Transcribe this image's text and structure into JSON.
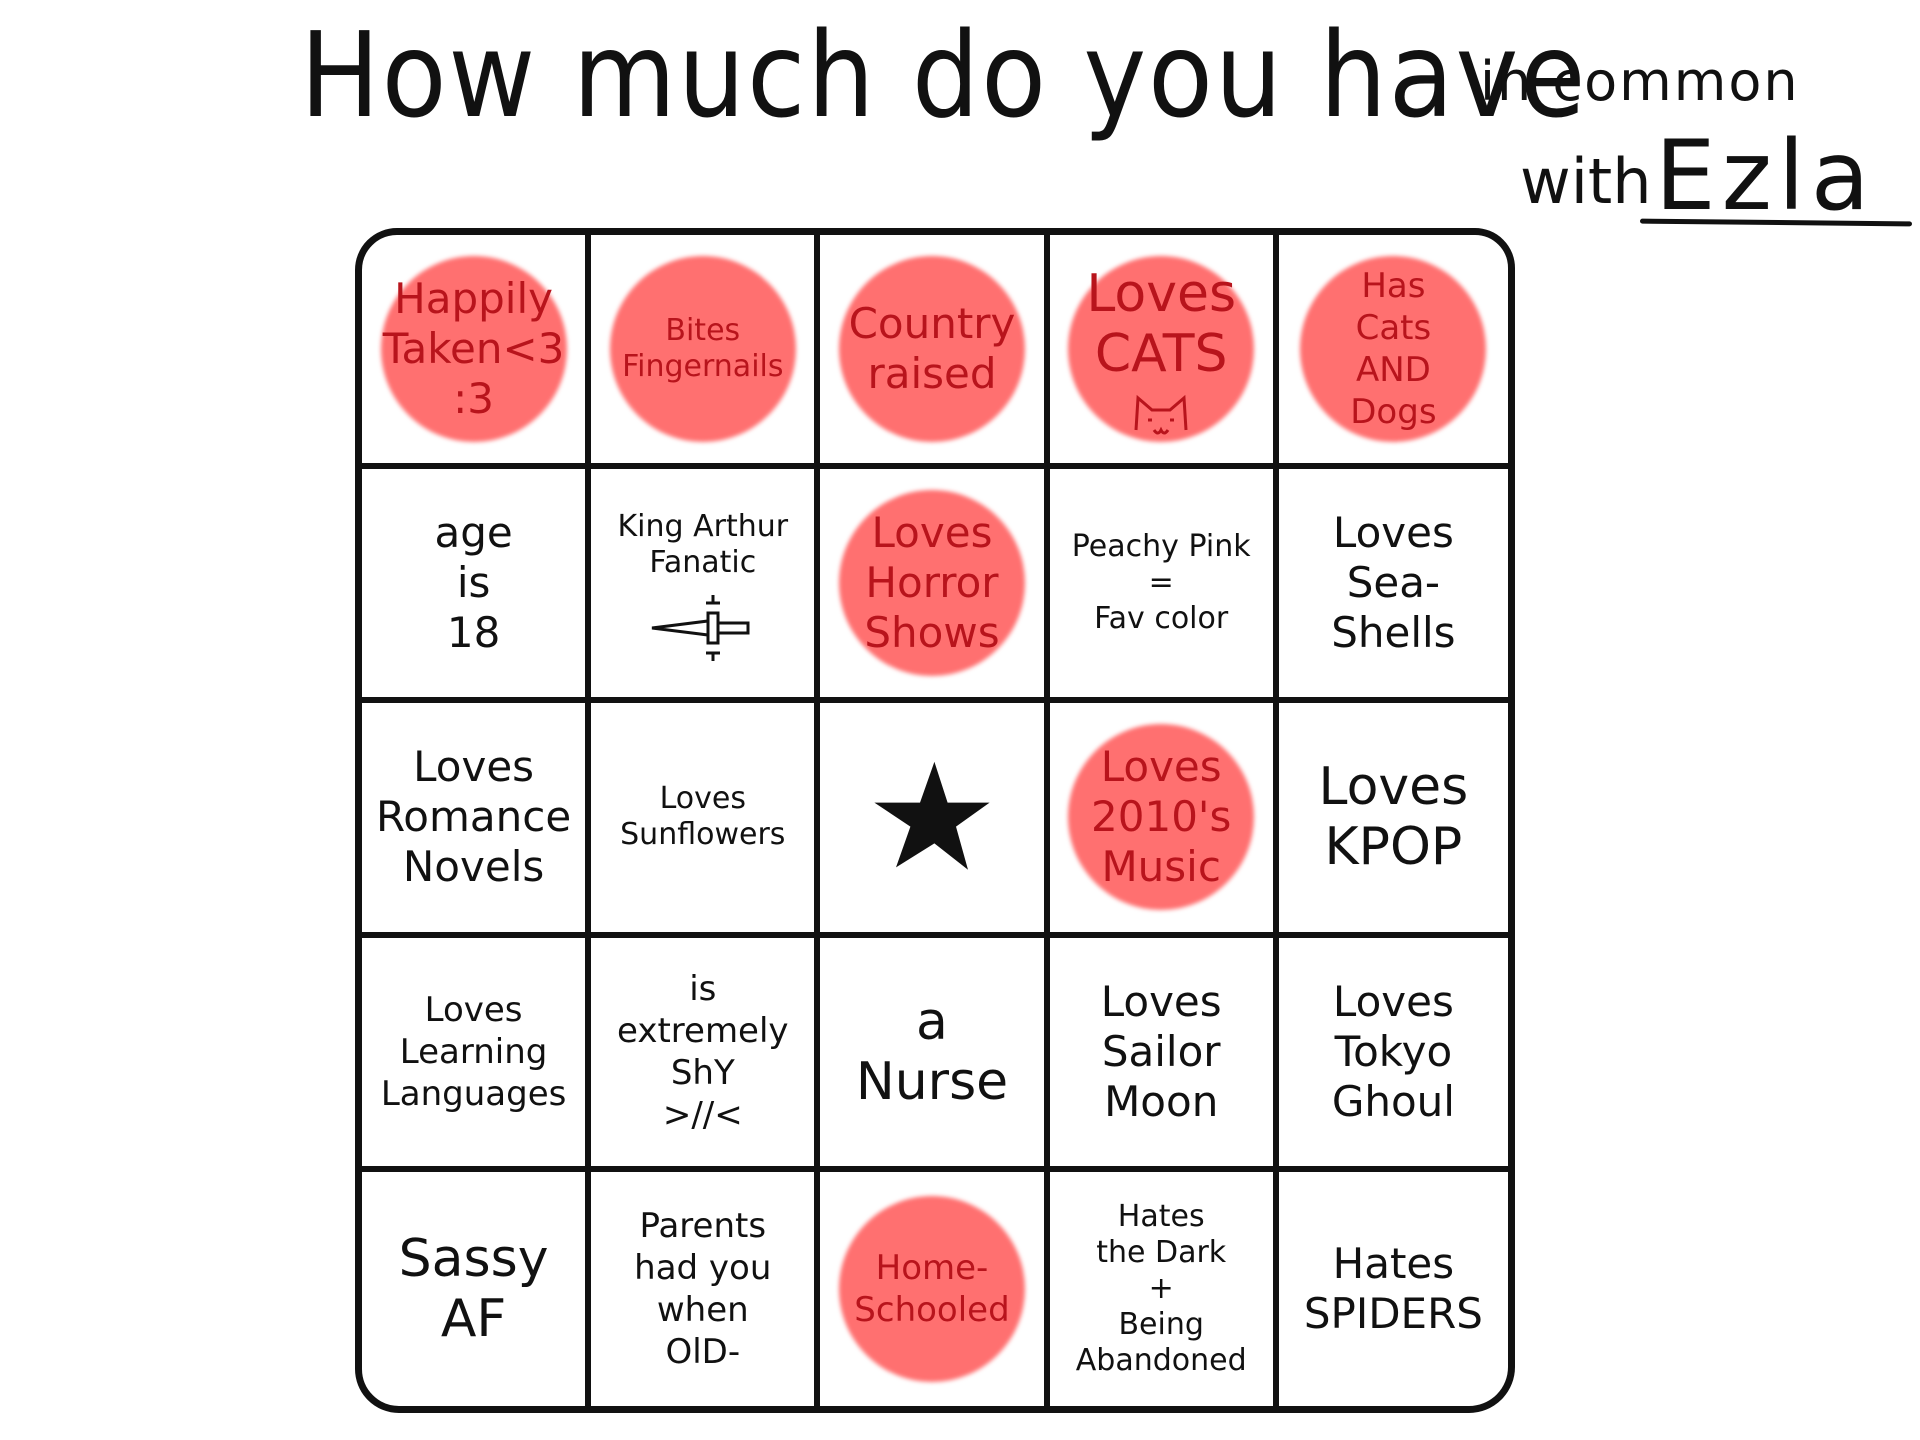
{
  "title": {
    "main": "How much do you have",
    "small": "in common",
    "with": "with",
    "name": "Ezla"
  },
  "colors": {
    "marker": "#ff5050",
    "ink": "#111111",
    "marked_text": "#b8141c"
  },
  "board": {
    "free_icon": "star-icon",
    "cells": [
      {
        "text": "Happily\nTaken<3\n:3",
        "marked": true
      },
      {
        "text": "Bites\nFingernails",
        "marked": true
      },
      {
        "text": "Country\nraised",
        "marked": true
      },
      {
        "text": "Loves\nCATS",
        "marked": true,
        "icon": "cat-face-icon"
      },
      {
        "text": "Has\nCats\nAND\nDogs",
        "marked": true
      },
      {
        "text": "age\nis\n18",
        "marked": false
      },
      {
        "text": "King Arthur\nFanatic",
        "marked": false,
        "icon": "sword-icon"
      },
      {
        "text": "Loves\nHorror\nShows",
        "marked": true
      },
      {
        "text": "Peachy Pink\n=\nFav color",
        "marked": false
      },
      {
        "text": "Loves\nSea-\nShells",
        "marked": false
      },
      {
        "text": "Loves\nRomance\nNovels",
        "marked": false
      },
      {
        "text": "Loves\nSunflowers",
        "marked": false
      },
      {
        "text": "",
        "marked": false,
        "free": true
      },
      {
        "text": "Loves\n2010's\nMusic",
        "marked": true
      },
      {
        "text": "Loves\nKPOP",
        "marked": false
      },
      {
        "text": "Loves\nLearning\nLanguages",
        "marked": false
      },
      {
        "text": "is\nextremely\nShY\n>//<",
        "marked": false
      },
      {
        "text": "a\nNurse",
        "marked": false
      },
      {
        "text": "Loves\nSailor\nMoon",
        "marked": false
      },
      {
        "text": "Loves\nTokyo\nGhoul",
        "marked": false
      },
      {
        "text": "Sassy\nAF",
        "marked": false
      },
      {
        "text": "Parents\nhad you\nwhen\nOlD-",
        "marked": false
      },
      {
        "text": "Home-\nSchooled",
        "marked": true
      },
      {
        "text": "Hates\nthe Dark\n+\nBeing\nAbandoned",
        "marked": false
      },
      {
        "text": "Hates\nSPIDERS",
        "marked": false
      }
    ]
  }
}
